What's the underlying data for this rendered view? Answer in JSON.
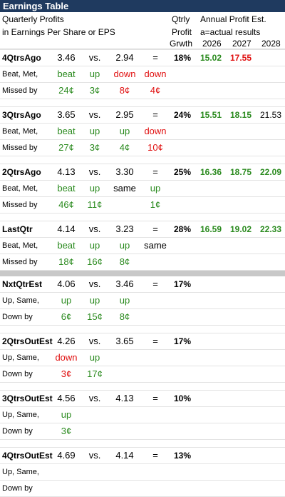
{
  "title": "Earnings Table",
  "header": {
    "line1": "Quarterly Profits",
    "line2": "in Earnings Per Share or EPS",
    "qtrly1": "Qtrly",
    "qtrly2": "Profit",
    "qtrly3": "Grwth",
    "annual": "Annual Profit Est.",
    "annual2": "a=actual results",
    "y2026": "2026",
    "y2027": "2027",
    "y2028": "2028"
  },
  "blocks": [
    {
      "name": "4QtrsAgo",
      "eps": "3.46",
      "vs": "vs.",
      "prior": "2.94",
      "eq": "=",
      "growth": "18%",
      "est": [
        {
          "v": "15.02",
          "c": "green"
        },
        {
          "v": "17.55",
          "c": "red"
        },
        {
          "v": "",
          "c": "black"
        }
      ],
      "r2label": "Beat, Met,",
      "r2": [
        {
          "v": "beat",
          "c": "green"
        },
        {
          "v": "up",
          "c": "green"
        },
        {
          "v": "down",
          "c": "red"
        },
        {
          "v": "down",
          "c": "red"
        }
      ],
      "r3label": "Missed by",
      "r3": [
        {
          "v": "24¢",
          "c": "green"
        },
        {
          "v": "3¢",
          "c": "green"
        },
        {
          "v": "8¢",
          "c": "red"
        },
        {
          "v": "4¢",
          "c": "red"
        }
      ]
    },
    {
      "name": "3QtrsAgo",
      "eps": "3.65",
      "vs": "vs.",
      "prior": "2.95",
      "eq": "=",
      "growth": "24%",
      "est": [
        {
          "v": "15.51",
          "c": "green"
        },
        {
          "v": "18.15",
          "c": "green"
        },
        {
          "v": "21.53",
          "c": "black"
        }
      ],
      "r2label": "Beat, Met,",
      "r2": [
        {
          "v": "beat",
          "c": "green"
        },
        {
          "v": "up",
          "c": "green"
        },
        {
          "v": "up",
          "c": "green"
        },
        {
          "v": "down",
          "c": "red"
        }
      ],
      "r3label": "Missed by",
      "r3": [
        {
          "v": "27¢",
          "c": "green"
        },
        {
          "v": "3¢",
          "c": "green"
        },
        {
          "v": "4¢",
          "c": "green"
        },
        {
          "v": "10¢",
          "c": "red"
        }
      ]
    },
    {
      "name": "2QtrsAgo",
      "eps": "4.13",
      "vs": "vs.",
      "prior": "3.30",
      "eq": "=",
      "growth": "25%",
      "est": [
        {
          "v": "16.36",
          "c": "green"
        },
        {
          "v": "18.75",
          "c": "green"
        },
        {
          "v": "22.09",
          "c": "green"
        }
      ],
      "r2label": "Beat, Met,",
      "r2": [
        {
          "v": "beat",
          "c": "green"
        },
        {
          "v": "up",
          "c": "green"
        },
        {
          "v": "same",
          "c": "black"
        },
        {
          "v": "up",
          "c": "green"
        }
      ],
      "r3label": "Missed by",
      "r3": [
        {
          "v": "46¢",
          "c": "green"
        },
        {
          "v": "11¢",
          "c": "green"
        },
        {
          "v": "",
          "c": "black"
        },
        {
          "v": "1¢",
          "c": "green"
        }
      ]
    },
    {
      "name": "LastQtr",
      "eps": "4.14",
      "vs": "vs.",
      "prior": "3.23",
      "eq": "=",
      "growth": "28%",
      "est": [
        {
          "v": "16.59",
          "c": "green"
        },
        {
          "v": "19.02",
          "c": "green"
        },
        {
          "v": "22.33",
          "c": "green"
        }
      ],
      "r2label": "Beat, Met,",
      "r2": [
        {
          "v": "beat",
          "c": "green"
        },
        {
          "v": "up",
          "c": "green"
        },
        {
          "v": "up",
          "c": "green"
        },
        {
          "v": "same",
          "c": "black"
        }
      ],
      "r3label": "Missed by",
      "r3": [
        {
          "v": "18¢",
          "c": "green"
        },
        {
          "v": "16¢",
          "c": "green"
        },
        {
          "v": "8¢",
          "c": "green"
        },
        {
          "v": "",
          "c": "black"
        }
      ]
    }
  ],
  "estblocks": [
    {
      "name": "NxtQtrEst",
      "eps": "4.06",
      "vs": "vs.",
      "prior": "3.46",
      "eq": "=",
      "growth": "17%",
      "r2label": "Up, Same,",
      "r2": [
        {
          "v": "up",
          "c": "green"
        },
        {
          "v": "up",
          "c": "green"
        },
        {
          "v": "up",
          "c": "green"
        }
      ],
      "r3label": "Down by",
      "r3": [
        {
          "v": "6¢",
          "c": "green"
        },
        {
          "v": "15¢",
          "c": "green"
        },
        {
          "v": "8¢",
          "c": "green"
        }
      ]
    },
    {
      "name": "2QtrsOutEst",
      "eps": "4.26",
      "vs": "vs.",
      "prior": "3.65",
      "eq": "=",
      "growth": "17%",
      "r2label": "Up, Same,",
      "r2": [
        {
          "v": "down",
          "c": "red"
        },
        {
          "v": "up",
          "c": "green"
        },
        {
          "v": "",
          "c": "black"
        }
      ],
      "r3label": "Down by",
      "r3": [
        {
          "v": "3¢",
          "c": "red"
        },
        {
          "v": "17¢",
          "c": "green"
        },
        {
          "v": "",
          "c": "black"
        }
      ]
    },
    {
      "name": "3QtrsOutEst",
      "eps": "4.56",
      "vs": "vs.",
      "prior": "4.13",
      "eq": "=",
      "growth": "10%",
      "r2label": "Up, Same,",
      "r2": [
        {
          "v": "up",
          "c": "green"
        },
        {
          "v": "",
          "c": "black"
        },
        {
          "v": "",
          "c": "black"
        }
      ],
      "r3label": "Down by",
      "r3": [
        {
          "v": "3¢",
          "c": "green"
        },
        {
          "v": "",
          "c": "black"
        },
        {
          "v": "",
          "c": "black"
        }
      ]
    },
    {
      "name": "4QtrsOutEst",
      "eps": "4.69",
      "vs": "vs.",
      "prior": "4.14",
      "eq": "=",
      "growth": "13%",
      "r2label": "Up, Same,",
      "r2": [
        {
          "v": "",
          "c": "black"
        },
        {
          "v": "",
          "c": "black"
        },
        {
          "v": "",
          "c": "black"
        }
      ],
      "r3label": "Down by",
      "r3": [
        {
          "v": "",
          "c": "black"
        },
        {
          "v": "",
          "c": "black"
        },
        {
          "v": "",
          "c": "black"
        }
      ]
    }
  ]
}
